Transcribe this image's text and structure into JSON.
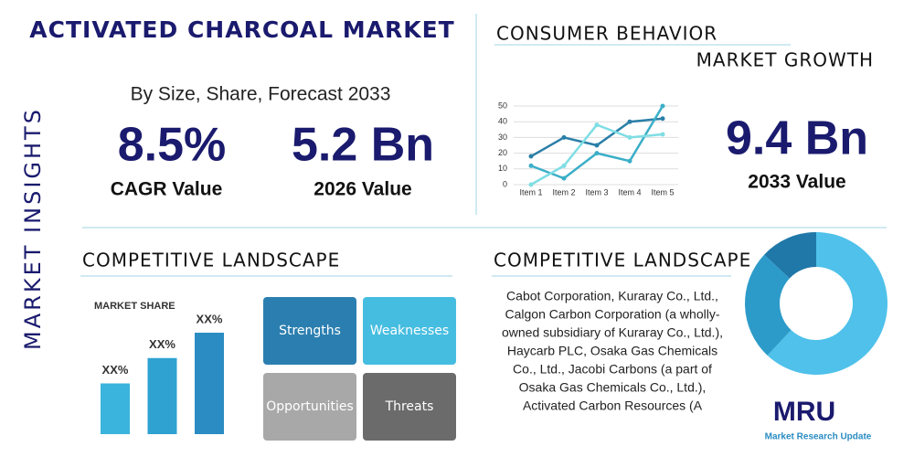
{
  "side_label": "MARKET INSIGHTS",
  "header": {
    "title": "ACTIVATED CHARCOAL MARKET",
    "subtitle": "By Size, Share, Forecast 2033"
  },
  "stats": [
    {
      "value": "8.5%",
      "label": "CAGR Value"
    },
    {
      "value": "5.2 Bn",
      "label": "2026 Value"
    }
  ],
  "consumer": {
    "title": "CONSUMER BEHAVIOR",
    "subtitle": "MARKET GROWTH",
    "stat": {
      "value": "9.4 Bn",
      "label": "2033 Value"
    }
  },
  "line_chart": {
    "type": "line",
    "categories": [
      "Item 1",
      "Item 2",
      "Item 3",
      "Item 4",
      "Item 5"
    ],
    "ylim": [
      0,
      50
    ],
    "yticks": [
      0,
      10,
      20,
      30,
      40,
      50
    ],
    "grid": true,
    "series": [
      {
        "color": "#2a7fa8",
        "values": [
          18,
          30,
          25,
          40,
          42
        ]
      },
      {
        "color": "#3aaec8",
        "values": [
          12,
          4,
          20,
          15,
          50
        ]
      },
      {
        "color": "#7fdde4",
        "values": [
          0,
          12,
          38,
          30,
          32
        ]
      }
    ]
  },
  "competitive_left": {
    "title": "COMPETITIVE LANDSCAPE",
    "bar_chart": {
      "type": "bar",
      "title": "MARKET SHARE",
      "ylim": [
        0,
        40
      ],
      "values": [
        20,
        30,
        40
      ],
      "value_labels": [
        "XX%",
        "XX%",
        "XX%"
      ],
      "colors": [
        "#3ab4dc",
        "#2fa2d2",
        "#2a8cc2"
      ]
    },
    "swot": [
      "Strengths",
      "Weaknesses",
      "Opportunities",
      "Threats"
    ]
  },
  "competitive_right": {
    "title": "COMPETITIVE LANDSCAPE",
    "lines": [
      "Cabot Corporation, Kuraray Co., Ltd.,",
      "Calgon Carbon Corporation (a wholly-",
      "owned subsidiary of Kuraray Co., Ltd.),",
      "Haycarb PLC, Osaka Gas Chemicals",
      "Co., Ltd., Jacobi Carbons (a part of",
      "Osaka Gas Chemicals Co., Ltd.),",
      "Activated Carbon Resources (A"
    ]
  },
  "donut": {
    "type": "pie",
    "values": [
      62,
      25,
      13
    ],
    "colors": [
      "#4fc1ea",
      "#2d9bc9",
      "#1f78a8"
    ]
  },
  "logo": {
    "mark": "MRU",
    "name": "Market Research Update"
  }
}
